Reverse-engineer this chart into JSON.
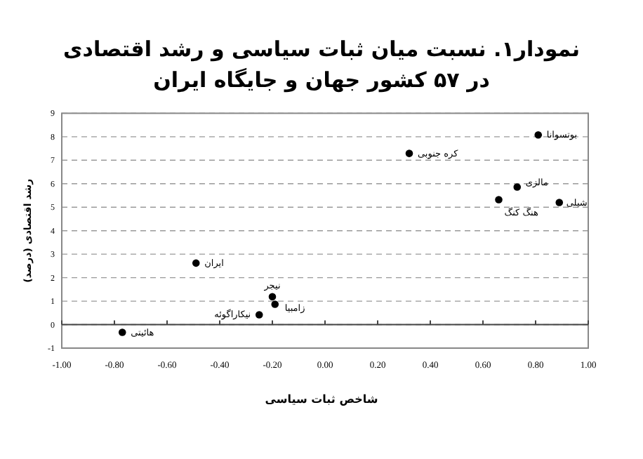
{
  "chart_data": {
    "type": "scatter",
    "title": "نمودار۱. نسبت میان ثبات سیاسی و رشد اقتصادی",
    "subtitle": "در ۵۷ کشور جهان و جایگاه ایران",
    "xlabel": "شاخص ثبات سیاسی",
    "ylabel": "(رشد اقتصادی (درصد",
    "x": [
      -0.77,
      -0.49,
      -0.2,
      -0.19,
      -0.25,
      0.32,
      0.81,
      0.73,
      0.66,
      0.89
    ],
    "series": [
      {
        "color": "#000000",
        "values": [
          -0.33,
          2.62,
          1.19,
          0.87,
          0.42,
          7.29,
          8.08,
          5.86,
          5.32,
          5.2
        ]
      }
    ],
    "marker": "circle",
    "grid": "y",
    "line_style": "dashed",
    "xlim": [
      -1,
      1
    ],
    "xticks": [
      {
        "value": -1,
        "label": "-1.00"
      },
      {
        "value": -0.8,
        "label": "-0.80"
      },
      {
        "value": -0.6,
        "label": "-0.60"
      },
      {
        "value": -0.4,
        "label": "-0.40"
      },
      {
        "value": -0.2,
        "label": "-0.20"
      },
      {
        "value": 0,
        "label": "0.00"
      },
      {
        "value": 0.2,
        "label": "0.20"
      },
      {
        "value": 0.4,
        "label": "0.40"
      },
      {
        "value": 0.6,
        "label": "0.60"
      },
      {
        "value": 0.8,
        "label": "0.80"
      },
      {
        "value": 1,
        "label": "1.00"
      }
    ],
    "ylim": [
      -1,
      9
    ],
    "yticks": [
      -1,
      0,
      1,
      2,
      3,
      4,
      5,
      6,
      7,
      8,
      9
    ],
    "annotations": [
      {
        "text": "هائیتی",
        "x": -0.77,
        "y": -0.33
      },
      {
        "text": "ایران",
        "x": -0.49,
        "y": 2.62
      },
      {
        "text": "نیجر",
        "x": -0.2,
        "y": 1.19
      },
      {
        "text": "زامبیا",
        "x": -0.19,
        "y": 0.87
      },
      {
        "text": "نیکاراگوئه",
        "x": -0.25,
        "y": 0.42
      },
      {
        "text": "کره جنوبی",
        "x": 0.32,
        "y": 7.29
      },
      {
        "text": "بوتسوانا",
        "x": 0.81,
        "y": 8.08
      },
      {
        "text": "مالزی",
        "x": 0.73,
        "y": 5.86
      },
      {
        "text": "هنگ کنگ",
        "x": 0.66,
        "y": 5.32
      },
      {
        "text": "شیلی",
        "x": 0.89,
        "y": 5.2
      }
    ]
  }
}
